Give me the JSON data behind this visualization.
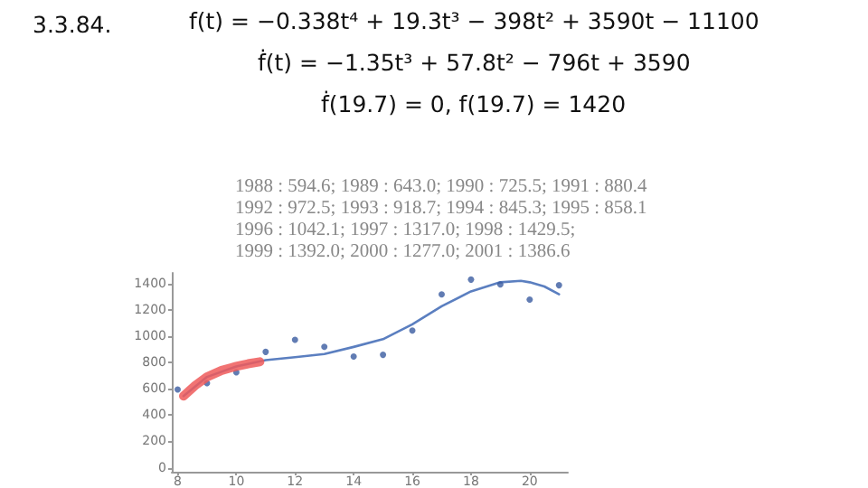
{
  "chart_data": {
    "type": "scatter",
    "annotations": [
      "3.3.84.",
      "f(t) = −0.338t⁴ + 19.3t³ − 398t² + 3590t − 11100",
      "ḟ(t) = −1.35t³ + 57.8t² − 796t + 3590",
      "ḟ(19.7) = 0,  f(19.7) = 1420",
      "1988 : 594.6; 1989 : 643.0; 1990 : 725.5; 1991 : 880.4",
      "1992 : 972.5; 1993 : 918.7; 1994 : 845.3; 1995 : 858.1",
      "1996 : 1042.1; 1997 : 1317.0; 1998 : 1429.5;",
      "1999 : 1392.0; 2000 : 1277.0; 2001 : 1386.6"
    ],
    "series": [
      {
        "marker": "circle",
        "color": "#3a5ba0",
        "x": [
          8,
          9,
          10,
          11,
          12,
          13,
          14,
          15,
          16,
          17,
          18,
          19,
          20,
          21
        ],
        "values": [
          594.6,
          643.0,
          725.5,
          880.4,
          972.5,
          918.7,
          845.3,
          858.1,
          1042.1,
          1317.0,
          1429.5,
          1392.0,
          1277.0,
          1386.6
        ]
      },
      {
        "type": "line",
        "marker": "none",
        "color": "#5b7fc0",
        "x": [
          8.2,
          9,
          10,
          11,
          12,
          13,
          14,
          15,
          16,
          17,
          18,
          19,
          19.7,
          20,
          20.5,
          21
        ],
        "values": [
          545,
          690,
          770,
          818,
          840,
          864,
          918,
          977,
          1090,
          1227,
          1340,
          1409,
          1420,
          1409,
          1377,
          1318
        ]
      },
      {
        "type": "line",
        "marker": "none",
        "color": "#ef5a5a",
        "x": [
          8.2,
          8.6,
          9,
          9.5,
          10,
          10.4,
          10.8
        ],
        "values": [
          545,
          625,
          690,
          740,
          770,
          790,
          805
        ]
      }
    ],
    "xlim": [
      7.8,
      21.3
    ],
    "xticks": [
      8,
      10,
      12,
      14,
      16,
      18,
      20
    ],
    "ylim": [
      -30,
      1480
    ],
    "yticks": [
      0,
      200,
      400,
      600,
      800,
      1000,
      1200,
      1400
    ],
    "grid": false
  }
}
